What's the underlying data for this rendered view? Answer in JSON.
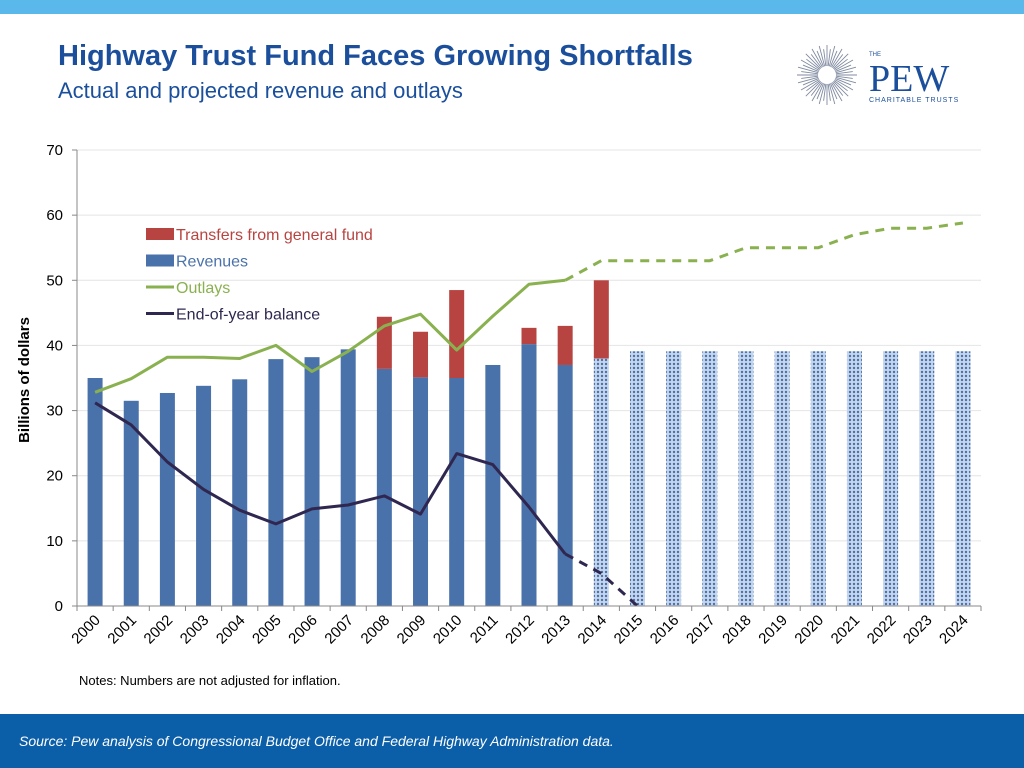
{
  "header": {
    "title": "Highway Trust Fund Faces Growing Shortfalls",
    "subtitle": "Actual and projected revenue and outlays"
  },
  "logo": {
    "the": "THE",
    "name": "PEW",
    "tagline": "CHARITABLE TRUSTS",
    "icon": "sunburst-icon"
  },
  "notes": "Notes: Numbers are not adjusted for inflation.",
  "footer": {
    "source": "Source: Pew analysis of Congressional Budget Office and Federal Highway Administration data."
  },
  "colors": {
    "top_bar": "#5bb8ea",
    "title": "#1b4f9c",
    "footer": "#0b5ea8",
    "revenue": "#4a72aa",
    "revenue_projected_fill": "#c5d6ee",
    "transfers": "#b84441",
    "outlays": "#8ab14f",
    "balance": "#2f2750"
  },
  "chart_data": {
    "type": "bar",
    "title": "Highway Trust Fund Faces Growing Shortfalls",
    "subtitle": "Actual and projected revenue and outlays",
    "xlabel": "",
    "ylabel": "Billions of dollars",
    "ylim": [
      0,
      70
    ],
    "yticks": [
      0,
      10,
      20,
      30,
      40,
      50,
      60,
      70
    ],
    "categories": [
      "2000",
      "2001",
      "2002",
      "2003",
      "2004",
      "2005",
      "2006",
      "2007",
      "2008",
      "2009",
      "2010",
      "2011",
      "2012",
      "2013",
      "2014",
      "2015",
      "2016",
      "2017",
      "2018",
      "2019",
      "2020",
      "2021",
      "2022",
      "2023",
      "2024"
    ],
    "projection_start": "2014",
    "grid": true,
    "legend_position": "top-left",
    "series": [
      {
        "name": "Transfers from general fund",
        "kind": "stacked-bar",
        "values": [
          0,
          0,
          0,
          0,
          0,
          0,
          0,
          0,
          8,
          7,
          13.5,
          0,
          2.5,
          6,
          12,
          null,
          null,
          null,
          null,
          null,
          null,
          null,
          null,
          null,
          null
        ]
      },
      {
        "name": "Revenues",
        "kind": "bar",
        "values": [
          35,
          31.5,
          32.7,
          33.8,
          34.8,
          37.9,
          38.2,
          39.4,
          36.4,
          35.1,
          35,
          37,
          40.2,
          37,
          38,
          39.1,
          39.1,
          39.1,
          39.1,
          39.1,
          39.1,
          39.1,
          39.1,
          39.1,
          39.1
        ]
      },
      {
        "name": "Outlays",
        "kind": "line",
        "values": [
          32.8,
          34.9,
          38.2,
          38.2,
          38,
          40,
          36,
          39.1,
          43,
          44.8,
          39.3,
          44.5,
          49.4,
          50,
          53,
          53,
          53,
          53,
          55,
          55,
          55,
          57,
          58,
          58,
          58.8
        ]
      },
      {
        "name": "End-of-year balance",
        "kind": "line",
        "values": [
          31.2,
          27.8,
          22.1,
          17.9,
          14.7,
          12.6,
          14.9,
          15.5,
          16.9,
          14.1,
          23.4,
          21.7,
          15.2,
          8,
          5,
          0,
          null,
          null,
          null,
          null,
          null,
          null,
          null,
          null,
          null
        ]
      }
    ]
  }
}
